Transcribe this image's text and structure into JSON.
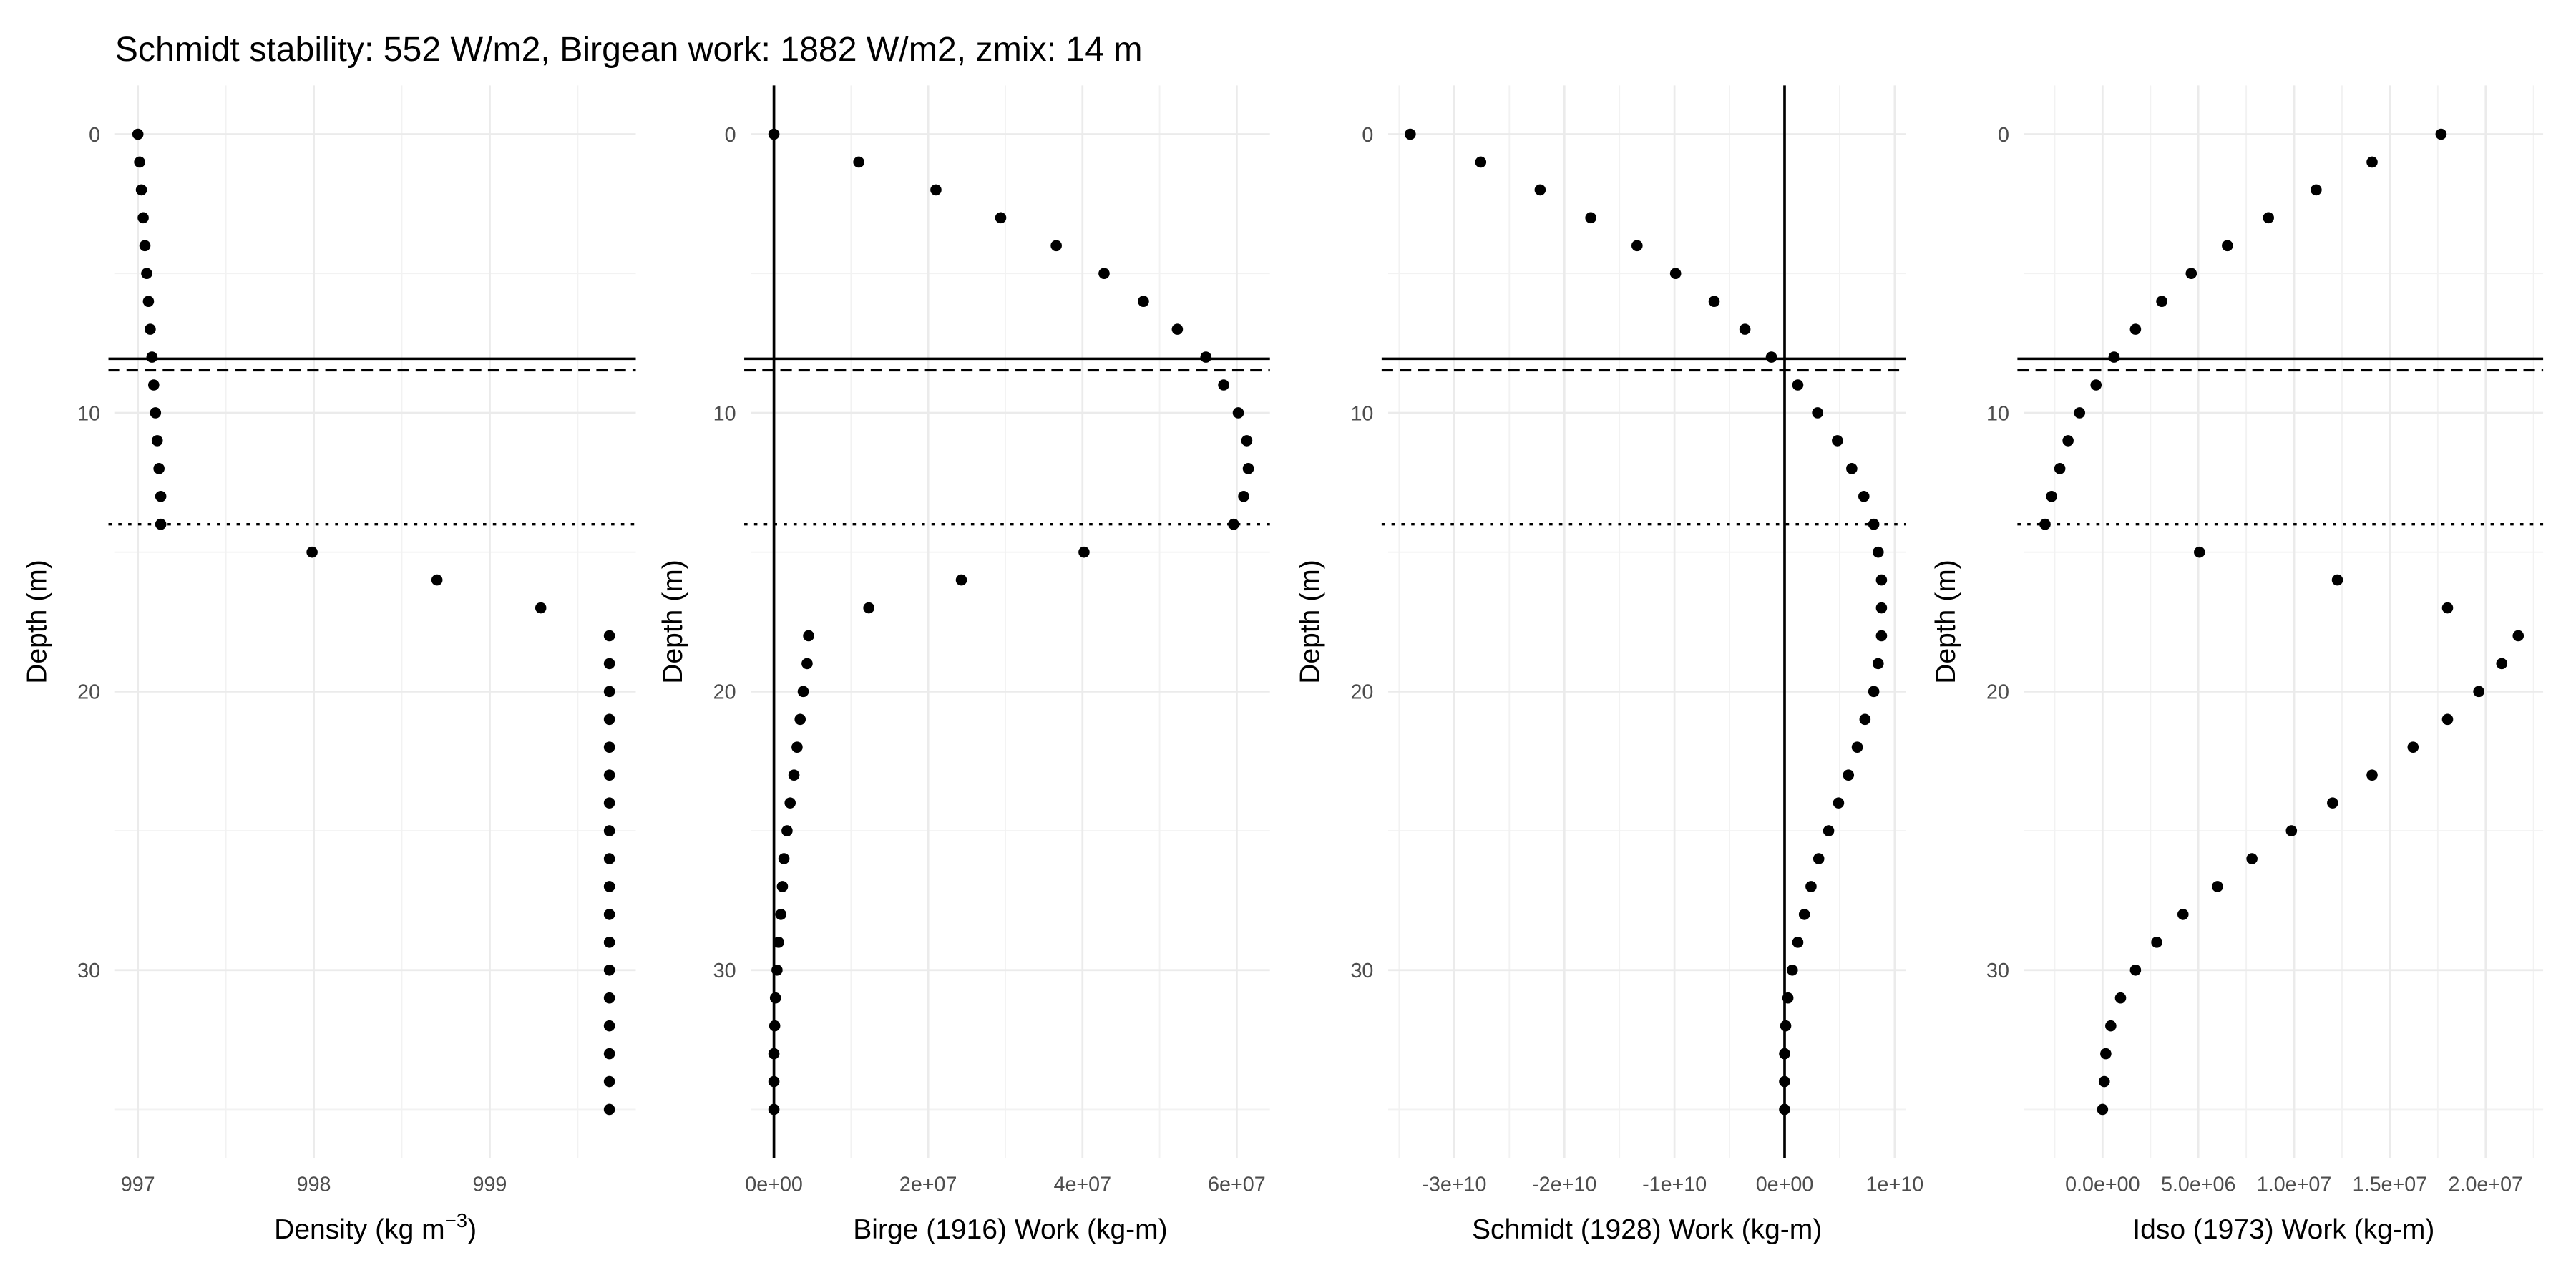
{
  "title": "Schmidt stability: 552 W/m2, Birgean work: 1882 W/m2, zmix: 14 m",
  "hlines": [
    {
      "value": 8.06,
      "style": "solid"
    },
    {
      "value": 8.47,
      "style": "dashed"
    },
    {
      "value": 14,
      "style": "dotted"
    }
  ],
  "chart_data": [
    {
      "type": "scatter",
      "xlabel": "Density (kg m",
      "xlabel_sup": "−3",
      "xlabel_end": ")",
      "ylabel": "Depth (m)",
      "color": "#000000",
      "grid": true,
      "xlim": [
        996.87,
        999.83
      ],
      "xticks": [
        997,
        998,
        999
      ],
      "minor_xticks": [
        997.5,
        998.5,
        999.5
      ],
      "ylim": [
        -1.75,
        36.75
      ],
      "yreversed": true,
      "yticks": [
        0,
        10,
        20,
        30
      ],
      "minor_yticks": [
        5,
        15,
        25,
        35
      ],
      "x": [
        997.0,
        997.01,
        997.02,
        997.03,
        997.04,
        997.05,
        997.06,
        997.07,
        997.08,
        997.09,
        997.1,
        997.11,
        997.12,
        997.13,
        997.13,
        997.99,
        998.7,
        999.29,
        999.68,
        999.68,
        999.68,
        999.68,
        999.68,
        999.68,
        999.68,
        999.68,
        999.68,
        999.68,
        999.68,
        999.68,
        999.68,
        999.68,
        999.68,
        999.68,
        999.68,
        999.68
      ],
      "y": [
        0,
        1,
        2,
        3,
        4,
        5,
        6,
        7,
        8,
        9,
        10,
        11,
        12,
        13,
        14,
        15,
        16,
        17,
        18,
        19,
        20,
        21,
        22,
        23,
        24,
        25,
        26,
        27,
        28,
        29,
        30,
        31,
        32,
        33,
        34,
        35
      ]
    },
    {
      "type": "scatter",
      "xlabel": "Birge (1916) Work (kg-m)",
      "ylabel": "Depth (m)",
      "color": "#000000",
      "grid": true,
      "vlines": [
        0
      ],
      "xlim": [
        -3000000,
        64300000
      ],
      "xticks": [
        {
          "value": 0,
          "label": "0e+00"
        },
        {
          "value": 20000000,
          "label": "2e+07"
        },
        {
          "value": 40000000,
          "label": "4e+07"
        },
        {
          "value": 60000000,
          "label": "6e+07"
        }
      ],
      "minor_xticks": [
        10000000,
        30000000,
        50000000
      ],
      "ylim": [
        -1.75,
        36.75
      ],
      "yreversed": true,
      "yticks": [
        0,
        10,
        20,
        30
      ],
      "minor_yticks": [
        5,
        15,
        25,
        35
      ],
      "x": [
        0,
        11000000,
        21000000,
        29400000,
        36600000,
        42800000,
        47900000,
        52300000,
        56000000,
        58300000,
        60200000,
        61300000,
        61500000,
        60900000,
        59600000,
        40200000,
        24300000,
        12300000,
        4500000,
        4300000,
        3800000,
        3400000,
        3000000,
        2600000,
        2100000,
        1700000,
        1300000,
        1100000,
        900000,
        600000,
        400000,
        200000,
        100000,
        0,
        0,
        0
      ],
      "y": [
        0,
        1,
        2,
        3,
        4,
        5,
        6,
        7,
        8,
        9,
        10,
        11,
        12,
        13,
        14,
        15,
        16,
        17,
        18,
        19,
        20,
        21,
        22,
        23,
        24,
        25,
        26,
        27,
        28,
        29,
        30,
        31,
        32,
        33,
        34,
        35
      ]
    },
    {
      "type": "scatter",
      "xlabel": "Schmidt (1928) Work (kg-m)",
      "ylabel": "Depth (m)",
      "color": "#000000",
      "grid": true,
      "vlines": [
        0
      ],
      "xlim": [
        -36000000000,
        11000000000
      ],
      "xticks": [
        {
          "value": -30000000000,
          "label": "-3e+10"
        },
        {
          "value": -20000000000,
          "label": "-2e+10"
        },
        {
          "value": -10000000000,
          "label": "-1e+10"
        },
        {
          "value": 0,
          "label": "0e+00"
        },
        {
          "value": 10000000000,
          "label": "1e+10"
        }
      ],
      "minor_xticks": [
        -35000000000,
        -25000000000,
        -15000000000,
        -5000000000,
        5000000000
      ],
      "ylim": [
        -1.75,
        36.75
      ],
      "yreversed": true,
      "yticks": [
        0,
        10,
        20,
        30
      ],
      "minor_yticks": [
        5,
        15,
        25,
        35
      ],
      "x": [
        -34000000000.0,
        -27600000000.0,
        -22200000000.0,
        -17600000000.0,
        -13400000000.0,
        -9900000000.0,
        -6400000000.0,
        -3600000000.0,
        -1200000000.0,
        1200000000.0,
        3000000000.0,
        4800000000.0,
        6100000000.0,
        7200000000.0,
        8100000000.0,
        8500000000.0,
        8800000000.0,
        8800000000.0,
        8800000000.0,
        8500000000.0,
        8100000000.0,
        7300000000.0,
        6600000000.0,
        5800000000.0,
        4900000000.0,
        4000000000.0,
        3100000000.0,
        2400000000.0,
        1800000000.0,
        1200000000.0,
        700000000.0,
        300000000.0,
        100000000.0,
        0,
        0,
        0
      ],
      "y": [
        0,
        1,
        2,
        3,
        4,
        5,
        6,
        7,
        8,
        9,
        10,
        11,
        12,
        13,
        14,
        15,
        16,
        17,
        18,
        19,
        20,
        21,
        22,
        23,
        24,
        25,
        26,
        27,
        28,
        29,
        30,
        31,
        32,
        33,
        34,
        35
      ]
    },
    {
      "type": "scatter",
      "xlabel": "Idso (1973) Work (kg-m)",
      "ylabel": "Depth (m)",
      "color": "#000000",
      "grid": true,
      "xlim": [
        -4100000,
        23000000
      ],
      "xticks": [
        {
          "value": 0,
          "label": "0.0e+00"
        },
        {
          "value": 5000000,
          "label": "5.0e+06"
        },
        {
          "value": 10000000,
          "label": "1.0e+07"
        },
        {
          "value": 15000000,
          "label": "1.5e+07"
        },
        {
          "value": 20000000,
          "label": "2.0e+07"
        }
      ],
      "minor_xticks": [
        -2500000,
        2500000,
        7500000,
        12500000,
        17500000,
        22500000
      ],
      "ylim": [
        -1.75,
        36.75
      ],
      "yreversed": true,
      "yticks": [
        0,
        10,
        20,
        30
      ],
      "minor_yticks": [
        5,
        15,
        25,
        35
      ],
      "x": [
        17670000,
        14070000,
        11150000,
        8660000,
        6520000,
        4630000,
        3090000,
        1720000,
        600000,
        -340000,
        -1200000,
        -1800000,
        -2230000,
        -2660000,
        -3000000,
        5060000,
        12260000,
        18010000,
        21700000,
        20840000,
        19640000,
        18010000,
        16210000,
        14070000,
        12010000,
        9860000,
        7800000,
        6000000,
        4200000,
        2830000,
        1720000,
        940000,
        430000,
        170000,
        90000,
        0
      ],
      "y": [
        0,
        1,
        2,
        3,
        4,
        5,
        6,
        7,
        8,
        9,
        10,
        11,
        12,
        13,
        14,
        15,
        16,
        17,
        18,
        19,
        20,
        21,
        22,
        23,
        24,
        25,
        26,
        27,
        28,
        29,
        30,
        31,
        32,
        33,
        34,
        35
      ]
    }
  ]
}
